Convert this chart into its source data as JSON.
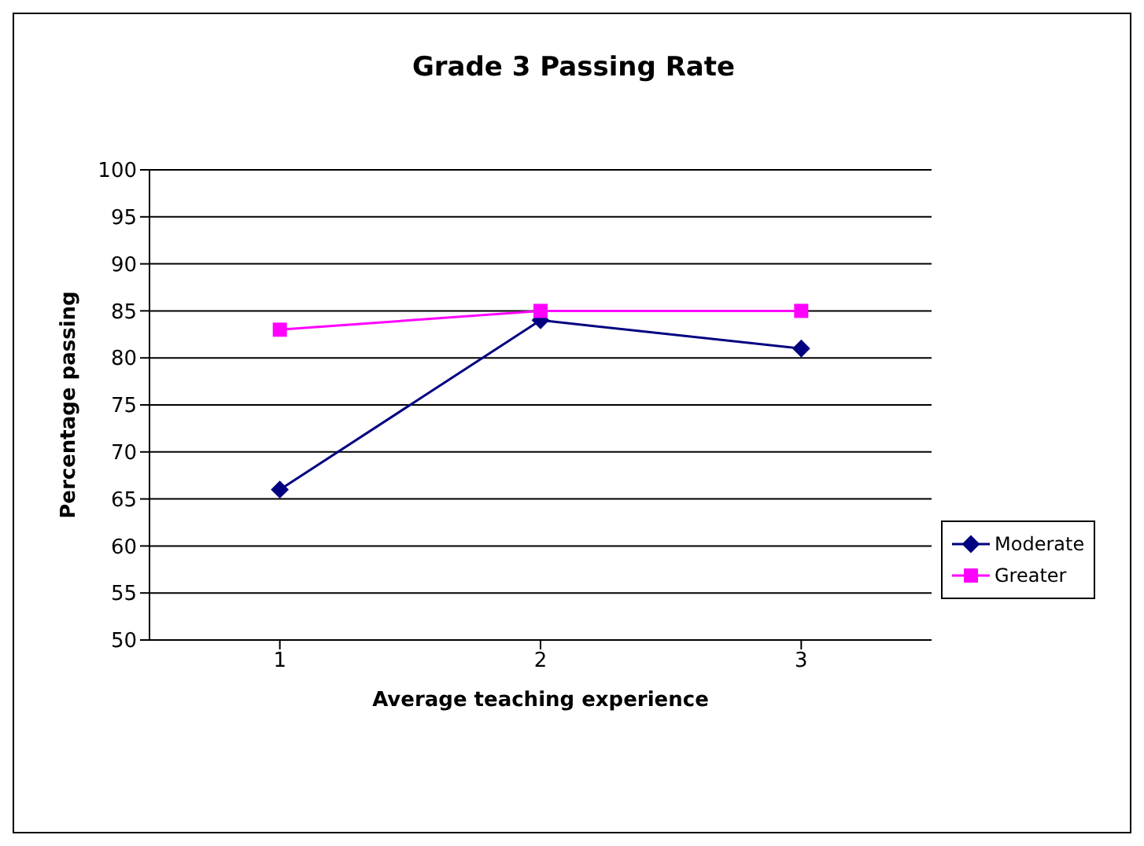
{
  "chart_data": {
    "type": "line",
    "title": "Grade 3 Passing Rate",
    "xlabel": "Average teaching experience",
    "ylabel": "Percentage passing",
    "categories": [
      "1",
      "2",
      "3"
    ],
    "series": [
      {
        "name": "Moderate",
        "color": "#000080",
        "values": [
          66,
          84,
          81
        ],
        "marker": "diamond"
      },
      {
        "name": "Greater",
        "color": "#ff00ff",
        "values": [
          83,
          85,
          85
        ],
        "marker": "square"
      }
    ],
    "ylim": [
      50,
      100
    ],
    "yticks": [
      50,
      55,
      60,
      65,
      70,
      75,
      80,
      85,
      90,
      95,
      100
    ],
    "grid": "y",
    "legend": "right"
  }
}
